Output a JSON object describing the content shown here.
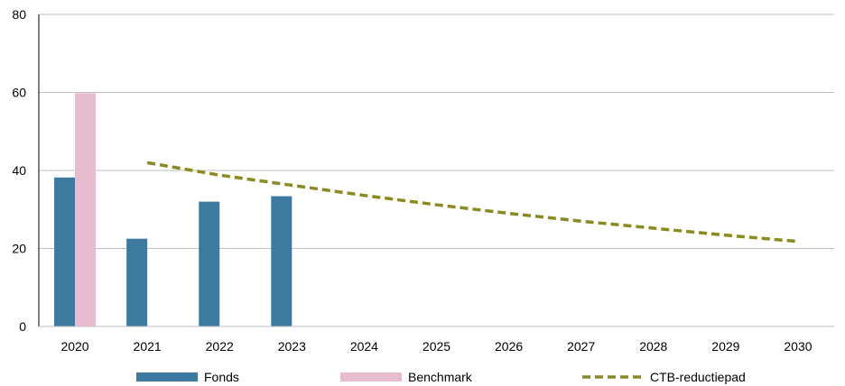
{
  "chart_data": {
    "type": "bar",
    "title": "",
    "xlabel": "",
    "ylabel": "",
    "categories": [
      "2020",
      "2021",
      "2022",
      "2023",
      "2024",
      "2025",
      "2026",
      "2027",
      "2028",
      "2029",
      "2030"
    ],
    "ylim": [
      0,
      80
    ],
    "yticks": [
      "0",
      "20",
      "40",
      "60",
      "80"
    ],
    "grid": true,
    "legend_position": "bottom",
    "series": [
      {
        "name": "Fonds",
        "kind": "bar",
        "color": "#3E7AA0",
        "values": [
          38.2,
          22.5,
          32.0,
          33.4,
          null,
          null,
          null,
          null,
          null,
          null,
          null
        ]
      },
      {
        "name": "Benchmark",
        "kind": "bar",
        "color": "#E6BCCE",
        "values": [
          59.8,
          null,
          null,
          null,
          null,
          null,
          null,
          null,
          null,
          null,
          null
        ]
      },
      {
        "name": "CTB-reductiepad",
        "kind": "line",
        "style": "dashed",
        "color": "#8A8A1E",
        "values": [
          null,
          42.0,
          38.8,
          36.2,
          33.6,
          31.2,
          29.0,
          27.0,
          25.2,
          23.4,
          21.8
        ]
      }
    ]
  }
}
